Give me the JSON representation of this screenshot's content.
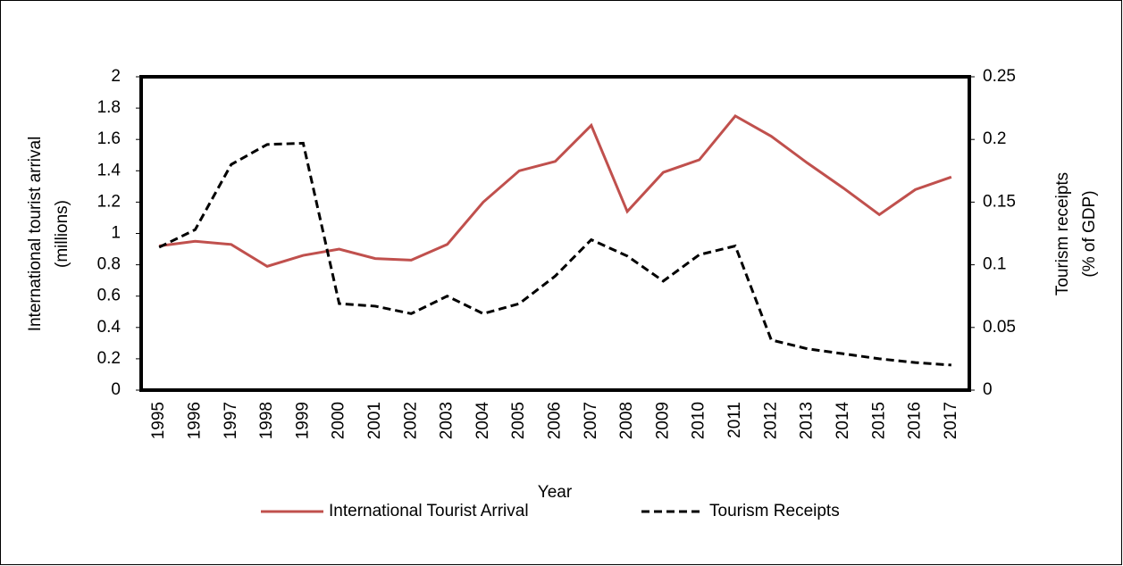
{
  "chart_data": {
    "type": "line",
    "categories": [
      "1995",
      "1996",
      "1997",
      "1998",
      "1999",
      "2000",
      "2001",
      "2002",
      "2003",
      "2004",
      "2005",
      "2006",
      "2007",
      "2008",
      "2009",
      "2010",
      "2011",
      "2012",
      "2013",
      "2014",
      "2015",
      "2016",
      "2017"
    ],
    "series": [
      {
        "name": "International Tourist Arrival",
        "color": "#c0504d",
        "dash": "solid",
        "values": [
          0.92,
          0.95,
          0.93,
          0.79,
          0.86,
          0.9,
          0.84,
          0.83,
          0.93,
          1.2,
          1.4,
          1.46,
          1.69,
          1.14,
          1.39,
          1.47,
          1.75,
          1.62,
          1.45,
          1.29,
          1.12,
          1.28,
          1.36
        ]
      },
      {
        "name": "Tourism Receipts",
        "color": "#000000",
        "dash": "dashed",
        "axis": "y2",
        "values": [
          0.114,
          0.128,
          0.18,
          0.196,
          0.197,
          0.069,
          0.067,
          0.061,
          0.075,
          0.061,
          0.069,
          0.091,
          0.12,
          0.107,
          0.087,
          0.108,
          0.115,
          0.04,
          0.033,
          0.029,
          0.025,
          0.022,
          0.02
        ]
      }
    ],
    "xlabel": "Year",
    "ylabel": [
      "International tourist arrival",
      "(millions)"
    ],
    "y2label": [
      "Tourism receipts",
      "(% of GDP)"
    ],
    "ylim": [
      0,
      2
    ],
    "yticks": [
      0,
      0.2,
      0.4,
      0.6,
      0.8,
      1,
      1.2,
      1.4,
      1.6,
      1.8,
      2
    ],
    "y2lim": [
      0,
      0.25
    ],
    "y2ticks": [
      0,
      0.05,
      0.1,
      0.15,
      0.2,
      0.25
    ],
    "legend": "bottom"
  }
}
